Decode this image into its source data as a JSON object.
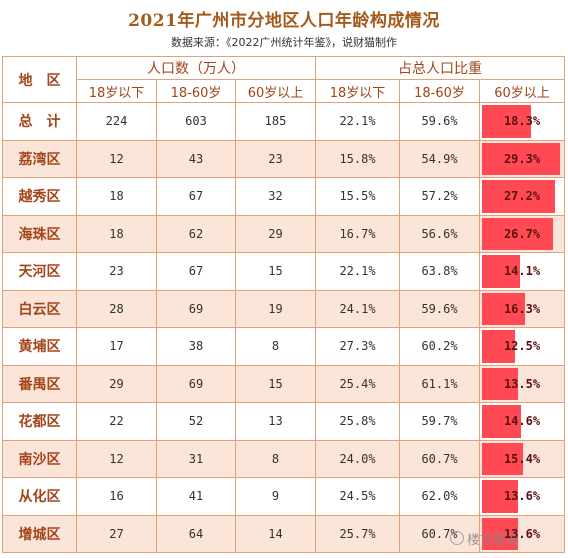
{
  "title": "2021年广州市分地区人口年龄构成情况",
  "subtitle": "数据来源：《2022广州统计年鉴》，说财猫制作",
  "headers": {
    "region": "地　区",
    "group_population": "人口数（万人）",
    "group_share": "占总人口比重",
    "cols": [
      "18岁以下",
      "18-60岁",
      "60岁以上",
      "18岁以下",
      "18-60岁",
      "60岁以上"
    ]
  },
  "rows": [
    {
      "name": "总　计",
      "p18": "224",
      "p60": "603",
      "pold": "185",
      "s18": "22.1%",
      "s60": "59.6%",
      "sold": "18.3%",
      "old_share": 18.3
    },
    {
      "name": "荔湾区",
      "p18": "12",
      "p60": "43",
      "pold": "23",
      "s18": "15.8%",
      "s60": "54.9%",
      "sold": "29.3%",
      "old_share": 29.3
    },
    {
      "name": "越秀区",
      "p18": "18",
      "p60": "67",
      "pold": "32",
      "s18": "15.5%",
      "s60": "57.2%",
      "sold": "27.2%",
      "old_share": 27.2
    },
    {
      "name": "海珠区",
      "p18": "18",
      "p60": "62",
      "pold": "29",
      "s18": "16.7%",
      "s60": "56.6%",
      "sold": "26.7%",
      "old_share": 26.7
    },
    {
      "name": "天河区",
      "p18": "23",
      "p60": "67",
      "pold": "15",
      "s18": "22.1%",
      "s60": "63.8%",
      "sold": "14.1%",
      "old_share": 14.1
    },
    {
      "name": "白云区",
      "p18": "28",
      "p60": "69",
      "pold": "19",
      "s18": "24.1%",
      "s60": "59.6%",
      "sold": "16.3%",
      "old_share": 16.3
    },
    {
      "name": "黄埔区",
      "p18": "17",
      "p60": "38",
      "pold": "8",
      "s18": "27.3%",
      "s60": "60.2%",
      "sold": "12.5%",
      "old_share": 12.5
    },
    {
      "name": "番禺区",
      "p18": "29",
      "p60": "69",
      "pold": "15",
      "s18": "25.4%",
      "s60": "61.1%",
      "sold": "13.5%",
      "old_share": 13.5
    },
    {
      "name": "花都区",
      "p18": "22",
      "p60": "52",
      "pold": "13",
      "s18": "25.8%",
      "s60": "59.7%",
      "sold": "14.6%",
      "old_share": 14.6
    },
    {
      "name": "南沙区",
      "p18": "12",
      "p60": "31",
      "pold": "8",
      "s18": "24.0%",
      "s60": "60.7%",
      "sold": "15.4%",
      "old_share": 15.4
    },
    {
      "name": "从化区",
      "p18": "16",
      "p60": "41",
      "pold": "9",
      "s18": "24.5%",
      "s60": "62.0%",
      "sold": "13.6%",
      "old_share": 13.6
    },
    {
      "name": "增城区",
      "p18": "27",
      "p60": "64",
      "pold": "14",
      "s18": "25.7%",
      "s60": "60.7%",
      "sold": "13.6%",
      "old_share": 13.6
    }
  ],
  "bar_scale_max": 30,
  "colors": {
    "bar": "#ff4a55",
    "accent": "#a3451a",
    "stripe": "#fbe4d8",
    "border": "#e2a178"
  },
  "watermark": "楼市雷语",
  "watermark_icon": "weibo-icon"
}
